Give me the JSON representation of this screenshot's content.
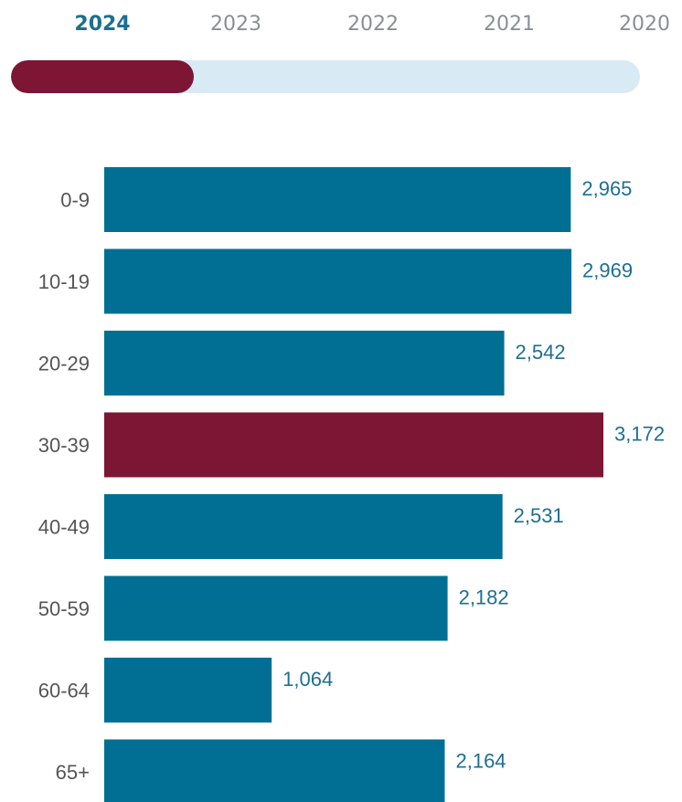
{
  "year_tabs": {
    "years": [
      "2024",
      "2023",
      "2022",
      "2021",
      "2020"
    ],
    "selected": "2024",
    "progress_fraction": 0.29
  },
  "colors": {
    "bar_default": "#006f93",
    "bar_highlight": "#7d1535",
    "progress_track": "#d8eaf3",
    "tab_active": "#1d6f91",
    "tab_inactive": "#8a8f94",
    "value_label": "#1d6f91",
    "tick_label": "#555555"
  },
  "chart_data": {
    "type": "bar",
    "orientation": "horizontal",
    "categories": [
      "0-9",
      "10-19",
      "20-29",
      "30-39",
      "40-49",
      "50-59",
      "60-64",
      "65+"
    ],
    "values": [
      2965,
      2969,
      2542,
      3172,
      2531,
      2182,
      1064,
      2164
    ],
    "value_labels": [
      "2,965",
      "2,969",
      "2,542",
      "3,172",
      "2,531",
      "2,182",
      "1,064",
      "2,164"
    ],
    "highlight_category": "30-39",
    "xlim": [
      0,
      3172
    ],
    "grid": false,
    "legend": "none"
  }
}
